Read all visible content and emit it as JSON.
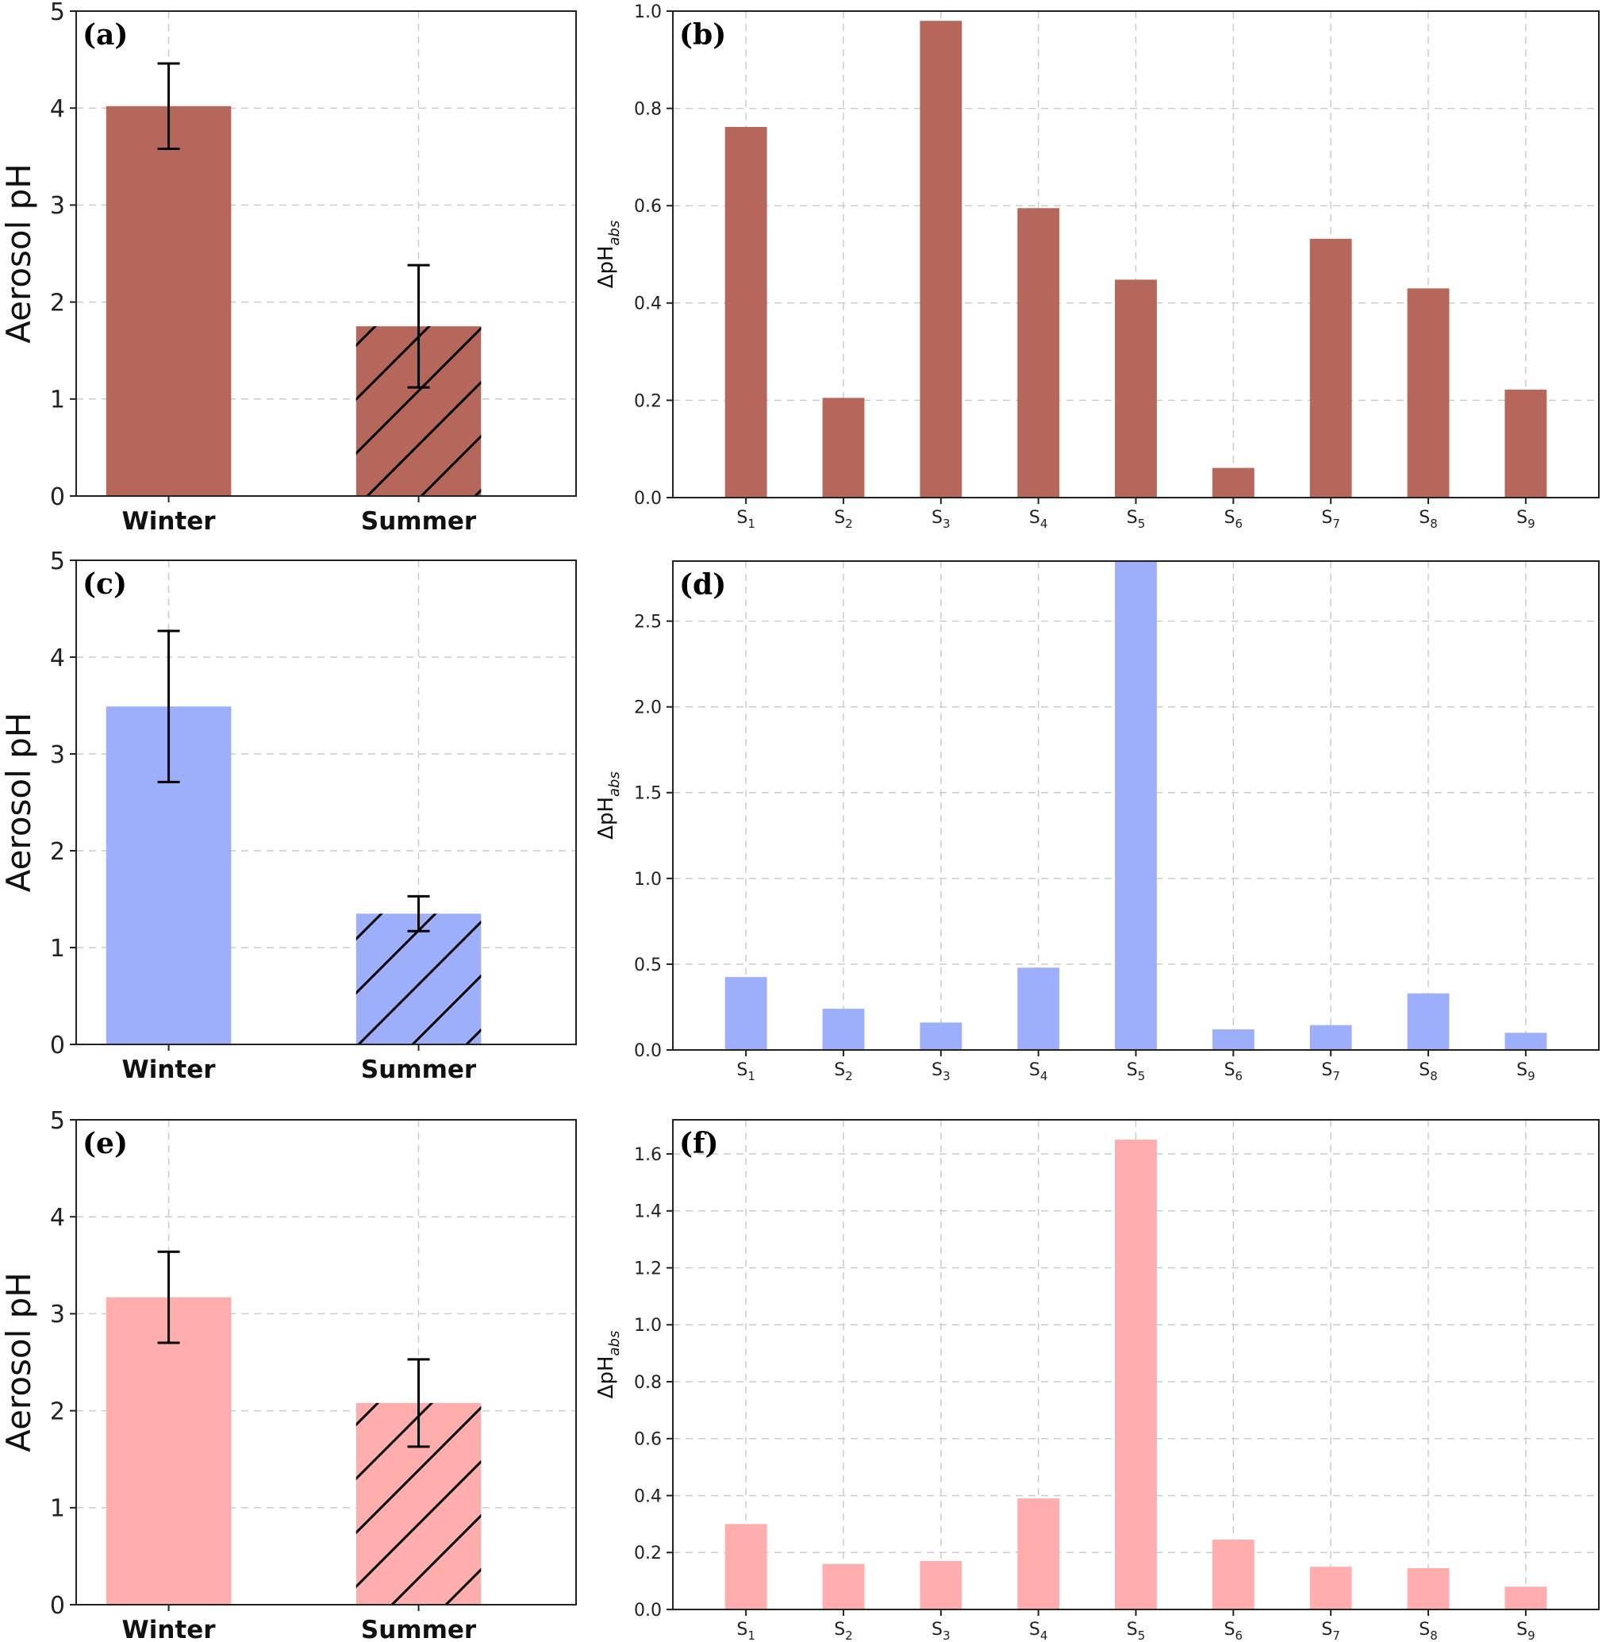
{
  "chart_data": [
    {
      "panel": "(a)",
      "type": "bar",
      "categories": [
        "Winter",
        "Summer"
      ],
      "values": [
        4.02,
        1.75
      ],
      "errors": [
        0.44,
        0.63
      ],
      "ylabel": "Aerosol pH",
      "ylim": [
        0,
        5
      ],
      "yticks": [
        "0",
        "1",
        "2",
        "3",
        "4",
        "5"
      ],
      "color": "#b5675c",
      "hatched": [
        false,
        true
      ],
      "grid": true
    },
    {
      "panel": "(b)",
      "type": "bar",
      "categories": [
        "S1",
        "S2",
        "S3",
        "S4",
        "S5",
        "S6",
        "S7",
        "S8",
        "S9"
      ],
      "values": [
        0.762,
        0.205,
        0.98,
        0.595,
        0.448,
        0.061,
        0.532,
        0.43,
        0.222
      ],
      "ylabel_main": "ΔpH",
      "ylabel_sub": "abs",
      "ylim": [
        0,
        1.0
      ],
      "yticks": [
        "0.0",
        "0.2",
        "0.4",
        "0.6",
        "0.8",
        "1.0"
      ],
      "color": "#b5675c",
      "grid": true
    },
    {
      "panel": "(c)",
      "type": "bar",
      "categories": [
        "Winter",
        "Summer"
      ],
      "values": [
        3.49,
        1.35
      ],
      "errors": [
        0.78,
        0.18
      ],
      "ylabel": "Aerosol pH",
      "ylim": [
        0,
        5
      ],
      "yticks": [
        "0",
        "1",
        "2",
        "3",
        "4",
        "5"
      ],
      "color": "#9daffb",
      "hatched": [
        false,
        true
      ],
      "grid": true
    },
    {
      "panel": "(d)",
      "type": "bar",
      "categories": [
        "S1",
        "S2",
        "S3",
        "S4",
        "S5",
        "S6",
        "S7",
        "S8",
        "S9"
      ],
      "values": [
        0.425,
        0.24,
        0.16,
        0.48,
        2.85,
        0.12,
        0.145,
        0.33,
        0.1
      ],
      "ylabel_main": "ΔpH",
      "ylabel_sub": "abs",
      "ylim": [
        0,
        2.85
      ],
      "yticks": [
        "0.0",
        "0.5",
        "1.0",
        "1.5",
        "2.0",
        "2.5"
      ],
      "color": "#9daffb",
      "grid": true
    },
    {
      "panel": "(e)",
      "type": "bar",
      "categories": [
        "Winter",
        "Summer"
      ],
      "values": [
        3.17,
        2.08
      ],
      "errors": [
        0.47,
        0.45
      ],
      "ylabel": "Aerosol pH",
      "ylim": [
        0,
        5
      ],
      "yticks": [
        "0",
        "1",
        "2",
        "3",
        "4",
        "5"
      ],
      "color": "#ffadad",
      "hatched": [
        false,
        true
      ],
      "grid": true
    },
    {
      "panel": "(f)",
      "type": "bar",
      "categories": [
        "S1",
        "S2",
        "S3",
        "S4",
        "S5",
        "S6",
        "S7",
        "S8",
        "S9"
      ],
      "values": [
        0.3,
        0.16,
        0.17,
        0.39,
        1.65,
        0.245,
        0.15,
        0.145,
        0.08
      ],
      "ylabel_main": "ΔpH",
      "ylabel_sub": "abs",
      "ylim": [
        0,
        1.72
      ],
      "yticks": [
        "0.0",
        "0.2",
        "0.4",
        "0.6",
        "0.8",
        "1.0",
        "1.2",
        "1.4",
        "1.6"
      ],
      "color": "#ffadad",
      "grid": true
    }
  ]
}
